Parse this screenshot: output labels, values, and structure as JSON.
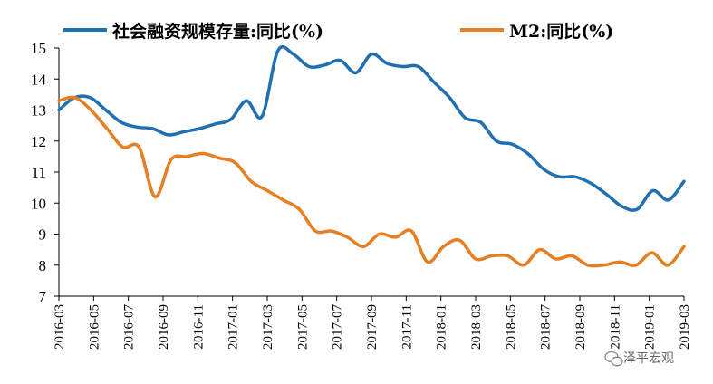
{
  "chart_data": {
    "type": "line",
    "title": "",
    "xlabel": "",
    "ylabel": "",
    "ylim": [
      7,
      15
    ],
    "yticks": [
      7,
      8,
      9,
      10,
      11,
      12,
      13,
      14,
      15
    ],
    "xtick_labels": [
      "2016-03",
      "2016-05",
      "2016-07",
      "2016-09",
      "2016-11",
      "2017-01",
      "2017-03",
      "2017-05",
      "2017-07",
      "2017-09",
      "2017-11",
      "2018-01",
      "2018-03",
      "2018-05",
      "2018-07",
      "2018-09",
      "2018-11",
      "2019-01",
      "2019-03"
    ],
    "legend_position": "top",
    "grid": false,
    "series": [
      {
        "name": "社会融资规模存量:同比(%)",
        "color": "#1f6fb4",
        "values": [
          13.0,
          13.4,
          13.4,
          13.0,
          12.6,
          12.45,
          12.4,
          12.2,
          12.3,
          12.4,
          12.55,
          12.7,
          13.3,
          12.8,
          14.9,
          14.8,
          14.4,
          14.45,
          14.6,
          14.2,
          14.8,
          14.5,
          14.4,
          14.4,
          13.9,
          13.4,
          12.75,
          12.6,
          12.0,
          11.9,
          11.6,
          11.1,
          10.85,
          10.85,
          10.65,
          10.3,
          9.9,
          9.8,
          10.4,
          10.1,
          10.7
        ]
      },
      {
        "name": "M2:同比(%)",
        "color": "#e67e22",
        "values": [
          13.3,
          13.4,
          13.0,
          12.4,
          11.8,
          11.8,
          10.2,
          11.4,
          11.5,
          11.6,
          11.45,
          11.3,
          10.7,
          10.4,
          10.1,
          9.8,
          9.1,
          9.1,
          8.9,
          8.6,
          9.0,
          8.9,
          9.1,
          8.1,
          8.6,
          8.8,
          8.2,
          8.3,
          8.3,
          8.0,
          8.5,
          8.2,
          8.3,
          8.0,
          8.0,
          8.1,
          8.0,
          8.4,
          8.0,
          8.6
        ]
      }
    ]
  },
  "watermark": {
    "icon": "wechat-icon",
    "text": "泽平宏观"
  }
}
